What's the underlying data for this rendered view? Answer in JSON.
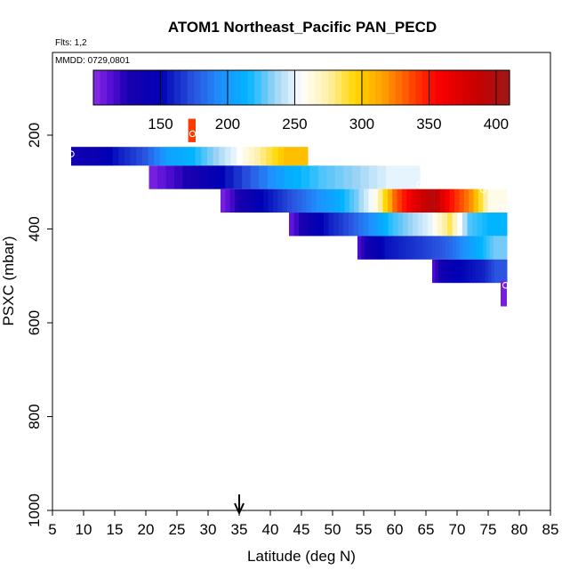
{
  "chart_data": {
    "type": "heatmap",
    "title": "ATOM1 Northeast_Pacific PAN_PECD",
    "info_flights": "Flts: 1,2",
    "info_dates": "MMDD: 0729,0801",
    "xlabel": "Latitude (deg N)",
    "ylabel": "PSXC (mbar)",
    "xlim": [
      5,
      85
    ],
    "ylim": [
      1000,
      0
    ],
    "xticks": [
      5,
      10,
      15,
      20,
      25,
      30,
      35,
      40,
      45,
      50,
      55,
      60,
      65,
      70,
      75,
      80,
      85
    ],
    "yticks": [
      200,
      400,
      600,
      800,
      1000
    ],
    "arrow_latitude": 35,
    "colorbar": {
      "range": [
        100,
        410
      ],
      "ticks": [
        150,
        200,
        250,
        300,
        350,
        400
      ],
      "stops": [
        {
          "v": 100,
          "c": "#8a2be2"
        },
        {
          "v": 112,
          "c": "#5a10d8"
        },
        {
          "v": 125,
          "c": "#1a00b0"
        },
        {
          "v": 150,
          "c": "#0000b4"
        },
        {
          "v": 175,
          "c": "#2a55e0"
        },
        {
          "v": 195,
          "c": "#1e90ff"
        },
        {
          "v": 215,
          "c": "#00b4ff"
        },
        {
          "v": 235,
          "c": "#9bd3f5"
        },
        {
          "v": 255,
          "c": "#ffffff"
        },
        {
          "v": 275,
          "c": "#fff0a8"
        },
        {
          "v": 295,
          "c": "#ffd700"
        },
        {
          "v": 315,
          "c": "#ffa500"
        },
        {
          "v": 335,
          "c": "#ff5000"
        },
        {
          "v": 355,
          "c": "#ff0000"
        },
        {
          "v": 385,
          "c": "#c80000"
        },
        {
          "v": 410,
          "c": "#a01818"
        }
      ]
    },
    "bands": [
      {
        "p": [
          225,
          265
        ],
        "lat": [
          8,
          46
        ],
        "v": [
          135,
          140,
          160,
          175,
          205,
          215,
          235,
          255,
          280,
          305
        ]
      },
      {
        "p": [
          265,
          315
        ],
        "lat": [
          20.5,
          64
        ],
        "v": [
          105,
          125,
          150,
          180,
          210,
          225,
          235,
          250
        ]
      },
      {
        "p": [
          315,
          365
        ],
        "lat": [
          32,
          78
        ],
        "v": [
          105,
          130,
          150,
          165,
          180,
          195,
          210,
          230,
          260,
          330,
          370,
          395,
          350,
          320,
          260
        ]
      },
      {
        "p": [
          365,
          415
        ],
        "lat": [
          43,
          78
        ],
        "v": [
          110,
          140,
          160,
          175,
          195,
          220,
          235,
          250,
          285,
          225,
          215
        ]
      },
      {
        "p": [
          415,
          465
        ],
        "lat": [
          54,
          78
        ],
        "v": [
          115,
          140,
          155,
          160,
          165,
          170,
          175,
          185,
          200,
          215,
          230
        ]
      },
      {
        "p": [
          465,
          515
        ],
        "lat": [
          66,
          78
        ],
        "v": [
          115,
          140,
          150,
          155,
          160,
          175
        ]
      }
    ],
    "spots": [
      {
        "p": [
          165,
          215
        ],
        "lat": [
          26.8,
          28
        ],
        "v": 340
      },
      {
        "p": [
          510,
          565
        ],
        "lat": [
          77,
          78
        ],
        "v": 105
      }
    ],
    "markers": [
      {
        "lat": 8,
        "p": 240
      },
      {
        "lat": 27.5,
        "p": 197
      },
      {
        "lat": 64,
        "p": 305
      },
      {
        "lat": 74.2,
        "p": 316
      },
      {
        "lat": 77,
        "p": 356
      },
      {
        "lat": 77.8,
        "p": 520
      }
    ]
  }
}
